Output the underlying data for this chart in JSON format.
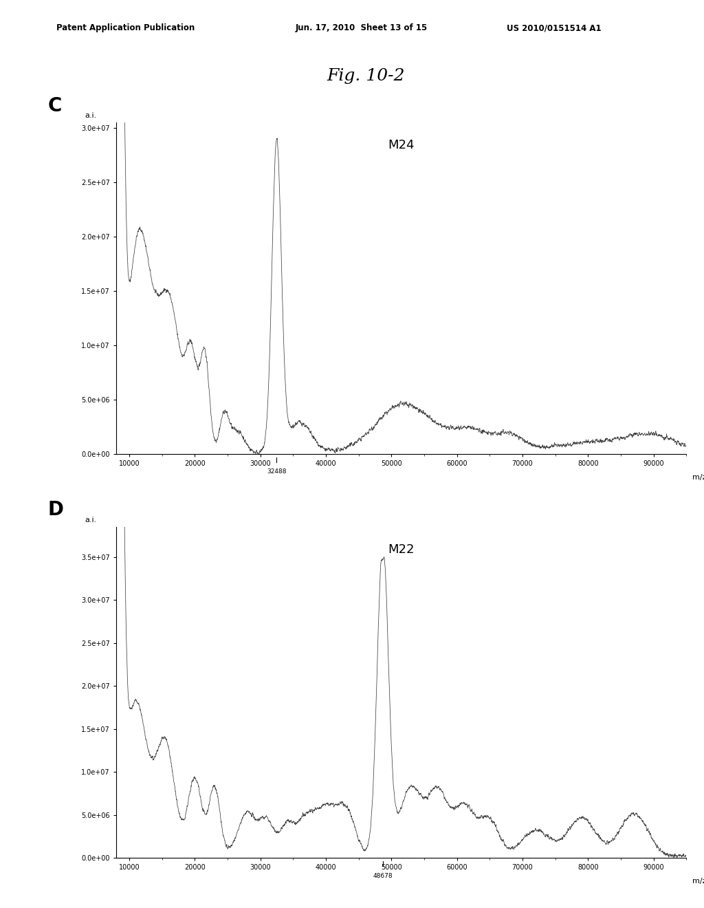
{
  "fig_title": "Fig. 10-2",
  "header_left": "Patent Application Publication",
  "header_mid": "Jun. 17, 2010  Sheet 13 of 15",
  "header_right": "US 2010/0151514 A1",
  "panel_C": {
    "label": "C",
    "title": "M24",
    "peak_x": 32488,
    "peak_label": "32488",
    "xlim": [
      8000,
      95000
    ],
    "ylim": [
      0.0,
      30500000.0
    ],
    "yticks": [
      0.0,
      5000000.0,
      10000000.0,
      15000000.0,
      20000000.0,
      25000000.0,
      30000000.0
    ],
    "ytick_labels": [
      "0.0e+00",
      "5.0e+06",
      "1.0e+07",
      "1.5e+07",
      "2.0e+07",
      "2.5e+07",
      "3.0e+07"
    ],
    "xticks": [
      10000,
      20000,
      30000,
      40000,
      50000,
      60000,
      70000,
      80000,
      90000
    ],
    "ylabel": "a.i.",
    "xlabel": "m/z"
  },
  "panel_D": {
    "label": "D",
    "title": "M22",
    "peak_x": 48678,
    "peak_label": "48678",
    "xlim": [
      8000,
      95000
    ],
    "ylim": [
      0.0,
      38500000.0
    ],
    "yticks": [
      0.0,
      5000000.0,
      10000000.0,
      15000000.0,
      20000000.0,
      25000000.0,
      30000000.0,
      35000000.0
    ],
    "ytick_labels": [
      "0.0e+00",
      "5.0e+06",
      "1.0e+07",
      "1.5e+07",
      "2.0e+07",
      "2.5e+07",
      "3.0e+07",
      "3.5e+07"
    ],
    "xticks": [
      10000,
      20000,
      30000,
      40000,
      50000,
      60000,
      70000,
      80000,
      90000
    ],
    "ylabel": "a.i.",
    "xlabel": "m/z"
  },
  "line_color": "#404040",
  "background_color": "#ffffff"
}
